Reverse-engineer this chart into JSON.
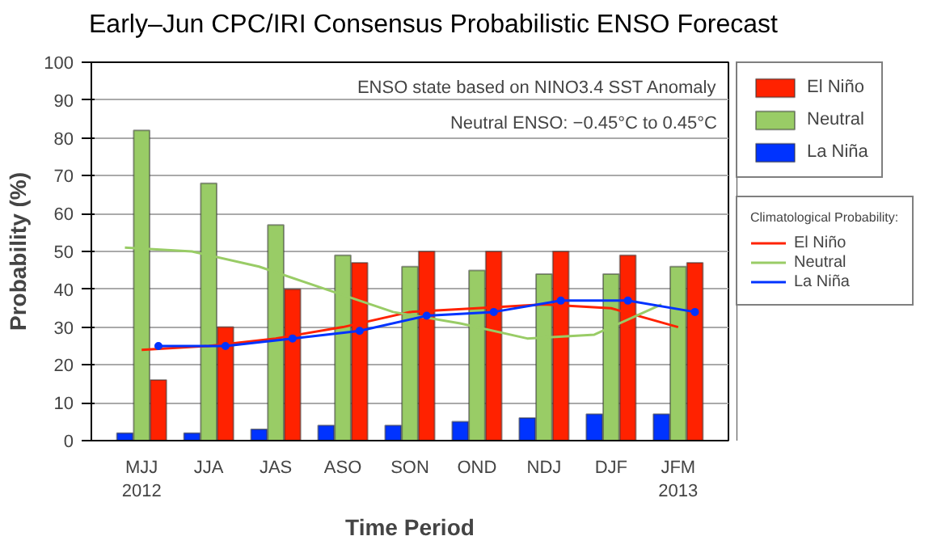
{
  "chart_data": {
    "type": "bar",
    "title": "Early–Jun CPC/IRI Consensus Probabilistic ENSO Forecast",
    "xlabel": "Time Period",
    "ylabel": "Probability (%)",
    "categories": [
      "MJJ\n2012",
      "JJA",
      "JAS",
      "ASO",
      "SON",
      "OND",
      "NDJ",
      "DJF",
      "JFM\n2013"
    ],
    "series": [
      {
        "name": "El Niño",
        "color": "#ff2200",
        "values": [
          16,
          30,
          40,
          47,
          50,
          50,
          50,
          49,
          47
        ]
      },
      {
        "name": "Neutral",
        "color": "#99cc66",
        "values": [
          82,
          68,
          57,
          49,
          46,
          45,
          44,
          44,
          46
        ]
      },
      {
        "name": "La Niña",
        "color": "#0033ff",
        "values": [
          2,
          2,
          3,
          4,
          4,
          5,
          6,
          7,
          7
        ]
      },
      {
        "type": "line",
        "name": "El Niño",
        "color": "#ff2200",
        "values": [
          24,
          25,
          27,
          30,
          34,
          35,
          36,
          35,
          30
        ]
      },
      {
        "type": "line",
        "name": "Neutral",
        "color": "#99cc66",
        "values": [
          51,
          50,
          46,
          40,
          34,
          31,
          27,
          28,
          36
        ]
      },
      {
        "type": "line",
        "name": "La Niña",
        "color": "#0033ff",
        "marker": "circle",
        "values": [
          25,
          25,
          27,
          29,
          33,
          34,
          37,
          37,
          34
        ]
      }
    ],
    "legend_title": "Climatological Probability:",
    "annotations": [
      "ENSO state based on NINO3.4 SST Anomaly",
      "Neutral ENSO: −0.45°C to 0.45°C"
    ],
    "ylim": [
      0,
      100
    ],
    "yticks": [
      0,
      10,
      20,
      30,
      40,
      50,
      60,
      70,
      80,
      90,
      100
    ],
    "grid": "y",
    "legend": "right"
  }
}
